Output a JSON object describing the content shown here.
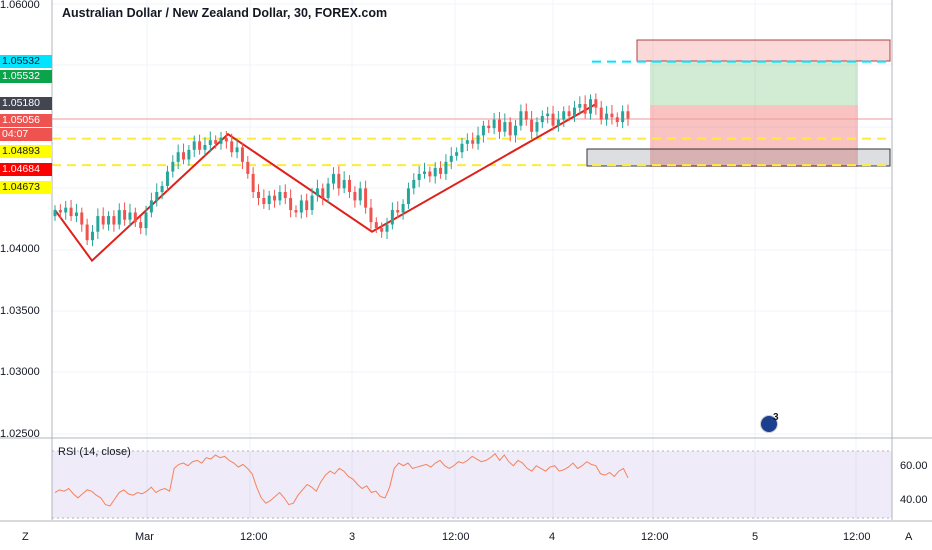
{
  "header": {
    "title": "Australian Dollar / New Zealand Dollar, 30, FOREX.com"
  },
  "price_axis": {
    "labels": [
      "1.06000",
      "1.04000",
      "1.03500",
      "1.03000",
      "1.02500"
    ],
    "tags": [
      {
        "text": "1.05532",
        "bg": "#00e5ff",
        "fg": "#131722"
      },
      {
        "text": "1.05532",
        "bg": "#0aa54b",
        "fg": "#ffffff"
      },
      {
        "text": "1.05180",
        "bg": "#434651",
        "fg": "#ffffff"
      },
      {
        "text": "1.05056",
        "bg": "#ef5350",
        "fg": "#ffffff"
      },
      {
        "text": "04:07",
        "bg": "#ef5350",
        "fg": "#ffffff"
      },
      {
        "text": "1.04893",
        "bg": "#ffff00",
        "fg": "#131722"
      },
      {
        "text": "1.04684",
        "bg": "#ff0000",
        "fg": "#ffffff"
      },
      {
        "text": "1.04673",
        "bg": "#ffff00",
        "fg": "#131722"
      }
    ]
  },
  "rsi": {
    "title": "RSI (14, close)",
    "labels": [
      "60.00",
      "40.00"
    ],
    "values": [
      44,
      46,
      45,
      47,
      43,
      40,
      43,
      46,
      45,
      42,
      40,
      35,
      34,
      39,
      44,
      46,
      43,
      42,
      44,
      43,
      45,
      48,
      44,
      46,
      47,
      45,
      62,
      65,
      66,
      64,
      67,
      68,
      66,
      70,
      69,
      72,
      70,
      71,
      68,
      66,
      63,
      65,
      62,
      58,
      48,
      40,
      36,
      38,
      41,
      44,
      40,
      35,
      36,
      42,
      46,
      50,
      48,
      45,
      52,
      57,
      60,
      58,
      62,
      60,
      56,
      54,
      50,
      47,
      49,
      44,
      45,
      41,
      40,
      48,
      62,
      66,
      64,
      66,
      62,
      63,
      64,
      65,
      63,
      66,
      68,
      64,
      62,
      64,
      67,
      66,
      68,
      71,
      69,
      67,
      68,
      70,
      73,
      68,
      72,
      67,
      64,
      68,
      66,
      62,
      60,
      64,
      62,
      60,
      63,
      64,
      60,
      61,
      63,
      66,
      62,
      64,
      67,
      65,
      64,
      58,
      57,
      59,
      56,
      60,
      62,
      55
    ]
  },
  "time_axis": {
    "labels": [
      "Mar",
      "12:00",
      "3",
      "12:00",
      "4",
      "12:00",
      "5",
      "12:00"
    ]
  },
  "corners": {
    "bottom_left": "Z",
    "bottom_right": "A"
  },
  "events": {
    "count": "3"
  },
  "chart_data": {
    "type": "candlestick",
    "title": "Australian Dollar / New Zealand Dollar, 30, FOREX.com",
    "ylim": [
      1.0245,
      1.0601
    ],
    "close": [
      1.043,
      1.0428,
      1.0432,
      1.0425,
      1.0428,
      1.0418,
      1.0405,
      1.0412,
      1.0425,
      1.0418,
      1.0425,
      1.0418,
      1.043,
      1.0422,
      1.0428,
      1.042,
      1.0415,
      1.0428,
      1.0438,
      1.0445,
      1.045,
      1.0462,
      1.047,
      1.0478,
      1.0472,
      1.048,
      1.0487,
      1.048,
      1.0484,
      1.0488,
      1.0485,
      1.049,
      1.0487,
      1.0478,
      1.0482,
      1.047,
      1.046,
      1.0445,
      1.044,
      1.0435,
      1.0442,
      1.0438,
      1.0445,
      1.044,
      1.043,
      1.0428,
      1.0438,
      1.043,
      1.0442,
      1.0448,
      1.044,
      1.0452,
      1.046,
      1.0448,
      1.0455,
      1.0445,
      1.0438,
      1.0448,
      1.0432,
      1.042,
      1.0415,
      1.0412,
      1.0418,
      1.043,
      1.0428,
      1.0435,
      1.0448,
      1.0455,
      1.046,
      1.0462,
      1.0458,
      1.0465,
      1.046,
      1.047,
      1.0475,
      1.0478,
      1.0485,
      1.0488,
      1.0485,
      1.0492,
      1.05,
      1.0498,
      1.0505,
      1.0495,
      1.0503,
      1.0492,
      1.05,
      1.0512,
      1.0505,
      1.0495,
      1.0503,
      1.0508,
      1.051,
      1.05,
      1.0505,
      1.0512,
      1.0508,
      1.0515,
      1.0518,
      1.051,
      1.0522,
      1.0515,
      1.0505,
      1.051,
      1.0507,
      1.0503,
      1.0512,
      1.0506
    ],
    "drawings": {
      "zigzag": [
        1.043,
        1.0388,
        1.0493,
        1.0412,
        1.0518
      ],
      "target": 1.05532,
      "levels": [
        1.04893,
        1.04684,
        1.04673
      ],
      "last_price": 1.05056
    }
  }
}
